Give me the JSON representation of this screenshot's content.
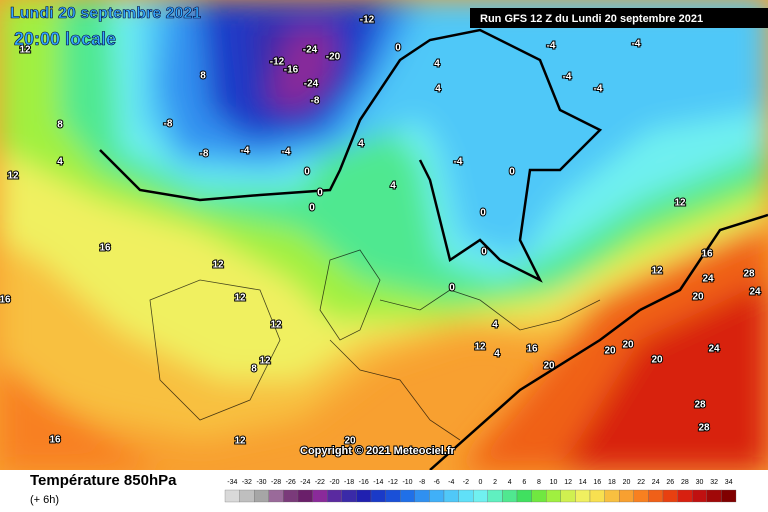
{
  "header": {
    "date": "Lundi 20 septembre 2021",
    "time": "20:00 locale",
    "run": "Run GFS 12 Z du Lundi 20 septembre 2021",
    "copyright": "Copyright © 2021 Meteociel.fr"
  },
  "footer": {
    "title": "Température 850hPa",
    "lead": "(+ 6h)"
  },
  "scale": {
    "values": [
      -34,
      -32,
      -30,
      -28,
      -26,
      -24,
      -22,
      -20,
      -18,
      -16,
      -14,
      -12,
      -10,
      -8,
      -6,
      -4,
      -2,
      0,
      2,
      4,
      6,
      8,
      10,
      12,
      14,
      16,
      18,
      20,
      22,
      24,
      26,
      28,
      30,
      32,
      34
    ],
    "colors": [
      "#d9d9d9",
      "#bfbfbf",
      "#a6a6a6",
      "#9a6a9a",
      "#7a3a7a",
      "#6a1f6a",
      "#8a2a9a",
      "#5a2aa0",
      "#3a2aa8",
      "#2020b0",
      "#1a3ac8",
      "#1a50d8",
      "#2070e8",
      "#3090f0",
      "#40b0f8",
      "#50c8f8",
      "#60e0f8",
      "#70f0f0",
      "#60f0c0",
      "#50e890",
      "#40e060",
      "#70e840",
      "#a0f040",
      "#d0f050",
      "#f0f060",
      "#f8e050",
      "#f8c040",
      "#f8a030",
      "#f88020",
      "#f06018",
      "#e84010",
      "#d82010",
      "#c01010",
      "#a00808",
      "#800000"
    ]
  },
  "map_labels": [
    -12,
    -24,
    -20,
    -12,
    -16,
    -24,
    -8,
    -8,
    -8,
    -4,
    -4,
    0,
    4,
    4,
    4,
    0,
    0,
    0,
    4,
    -4,
    0,
    0,
    0,
    0,
    4,
    4,
    12,
    16,
    20,
    20,
    20,
    20,
    24,
    28,
    28,
    24,
    28,
    24,
    20,
    16,
    12,
    12,
    -4,
    -4,
    -4,
    -4,
    8,
    8,
    4,
    12,
    12,
    12,
    12,
    12,
    8,
    12,
    16,
    16,
    16,
    12,
    20
  ]
}
